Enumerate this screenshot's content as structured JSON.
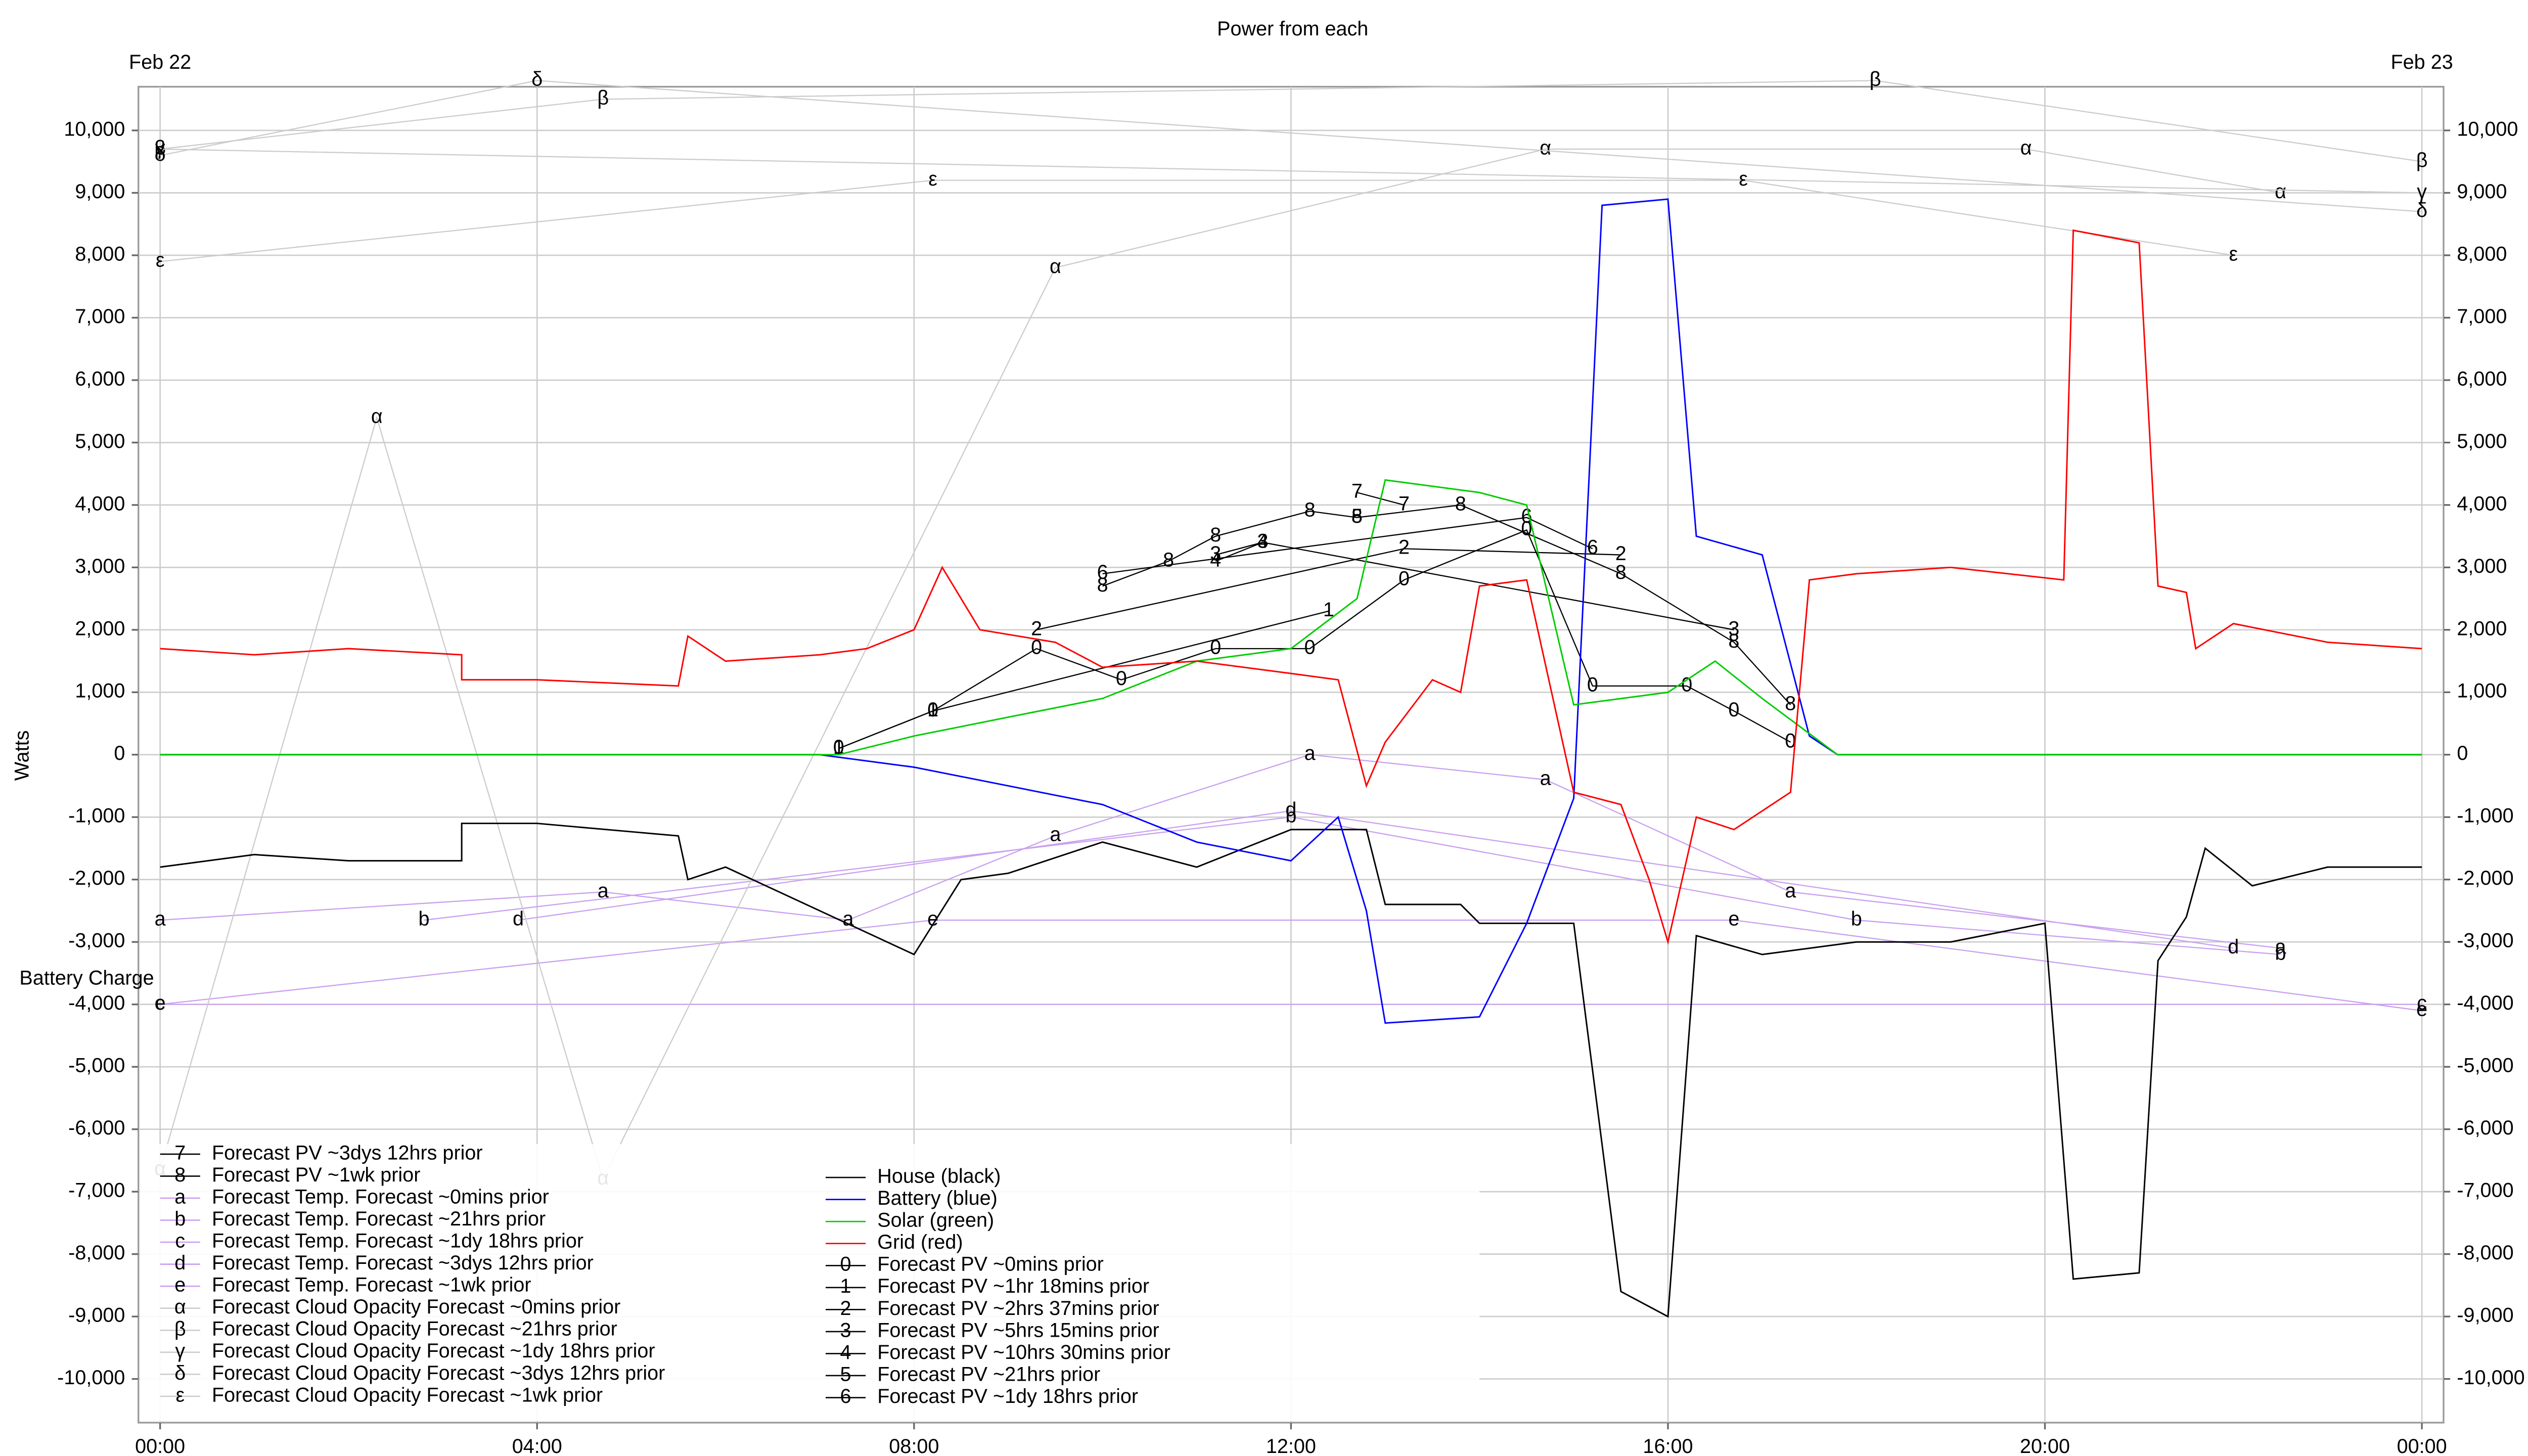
{
  "chart_data": {
    "type": "line",
    "title": "Power from each",
    "ylabel": "Watts",
    "annotations": [
      {
        "text": "Feb 22",
        "x": 0
      },
      {
        "text": "Feb 23",
        "x": 24
      },
      {
        "text": "Battery Charge",
        "y": -3600
      }
    ],
    "xlim": [
      -0.23,
      24.23
    ],
    "xticks": [
      {
        "value": 0,
        "label": "00:00"
      },
      {
        "value": 4,
        "label": "04:00"
      },
      {
        "value": 8,
        "label": "08:00"
      },
      {
        "value": 12,
        "label": "12:00"
      },
      {
        "value": 16,
        "label": "16:00"
      },
      {
        "value": 20,
        "label": "20:00"
      },
      {
        "value": 24,
        "label": "00:00"
      }
    ],
    "ylim": [
      -10700,
      10700
    ],
    "yticks": [
      {
        "value": -10000,
        "label": "-10,000"
      },
      {
        "value": -9000,
        "label": "-9,000"
      },
      {
        "value": -8000,
        "label": "-8,000"
      },
      {
        "value": -7000,
        "label": "-7,000"
      },
      {
        "value": -6000,
        "label": "-6,000"
      },
      {
        "value": -5000,
        "label": "-5,000"
      },
      {
        "value": -4000,
        "label": "-4,000"
      },
      {
        "value": -3000,
        "label": "-3,000"
      },
      {
        "value": -2000,
        "label": "-2,000"
      },
      {
        "value": -1000,
        "label": "-1,000"
      },
      0,
      {
        "value": 1000,
        "label": "1,000"
      },
      {
        "value": 2000,
        "label": "2,000"
      },
      {
        "value": 3000,
        "label": "3,000"
      },
      {
        "value": 4000,
        "label": "4,000"
      },
      {
        "value": 5000,
        "label": "5,000"
      },
      {
        "value": 6000,
        "label": "6,000"
      },
      {
        "value": 7000,
        "label": "7,000"
      },
      {
        "value": 8000,
        "label": "8,000"
      },
      {
        "value": 9000,
        "label": "9,000"
      },
      {
        "value": 10000,
        "label": "10,000"
      }
    ],
    "grid": true,
    "legend": "lower left",
    "series": [
      {
        "name": "House (black)",
        "color": "#000000",
        "x": [
          0,
          1,
          2,
          3.2,
          3.2,
          4,
          5.5,
          5.6,
          6,
          7,
          8,
          8.5,
          9,
          10,
          11,
          12,
          12.8,
          13,
          13.8,
          14,
          15,
          15.5,
          16,
          16.3,
          17,
          18,
          19,
          20,
          20.3,
          21,
          21.2,
          21.5,
          21.7,
          22.2,
          23,
          24
        ],
        "values": [
          -1800,
          -1600,
          -1700,
          -1700,
          -1100,
          -1100,
          -1300,
          -2000,
          -1800,
          -2500,
          -3200,
          -2000,
          -1900,
          -1400,
          -1800,
          -1200,
          -1200,
          -2400,
          -2400,
          -2700,
          -2700,
          -8600,
          -9000,
          -2900,
          -3200,
          -3000,
          -3000,
          -2700,
          -8400,
          -8300,
          -3300,
          -2600,
          -1500,
          -2100,
          -1800,
          -1800
        ]
      },
      {
        "name": "Battery (blue)",
        "color": "#0000ff",
        "x": [
          0,
          7,
          8,
          9,
          10,
          11,
          12,
          12.5,
          12.8,
          13,
          14,
          14.5,
          15,
          15.3,
          16,
          16.3,
          17,
          17.5,
          17.8,
          24
        ],
        "values": [
          0,
          0,
          -200,
          -500,
          -800,
          -1400,
          -1700,
          -1000,
          -2500,
          -4300,
          -4200,
          -2700,
          -700,
          8800,
          8900,
          3500,
          3200,
          300,
          0,
          0
        ]
      },
      {
        "name": "Solar (green)",
        "color": "#00cc00",
        "x": [
          0,
          7.2,
          8,
          9,
          10,
          11,
          12,
          12.7,
          13,
          14,
          14.5,
          15,
          16,
          16.5,
          17,
          17.8,
          24
        ],
        "values": [
          0,
          0,
          300,
          600,
          900,
          1500,
          1700,
          2500,
          4400,
          4200,
          4000,
          800,
          1000,
          1500,
          900,
          0,
          0
        ]
      },
      {
        "name": "Grid (red)",
        "color": "#ff0000",
        "x": [
          0,
          1,
          2,
          3.2,
          3.2,
          4,
          5.5,
          5.6,
          6,
          7,
          7.5,
          8,
          8.3,
          8.7,
          9.5,
          10,
          11,
          12,
          12.5,
          12.8,
          13,
          13.5,
          13.8,
          14,
          14.5,
          15,
          15.5,
          15.8,
          16,
          16.3,
          16.7,
          17.3,
          17.5,
          18,
          19,
          20.2,
          20.3,
          21,
          21.2,
          21.5,
          21.6,
          22,
          23,
          24
        ],
        "values": [
          1700,
          1600,
          1700,
          1600,
          1200,
          1200,
          1100,
          1900,
          1500,
          1600,
          1700,
          2000,
          3000,
          2000,
          1800,
          1400,
          1500,
          1300,
          1200,
          -500,
          200,
          1200,
          1000,
          2700,
          2800,
          -600,
          -800,
          -2000,
          -3000,
          -1000,
          -1200,
          -600,
          2800,
          2900,
          3000,
          2800,
          8400,
          8200,
          2700,
          2600,
          1700,
          2100,
          1800,
          1700
        ]
      },
      {
        "name": "Forecast PV ~0mins prior",
        "marker": "0",
        "color": "#000000",
        "x": [
          7.2,
          8.2,
          9.3,
          10.2,
          11.2,
          12.2,
          13.2,
          14.5,
          15.2,
          16.2,
          16.7,
          17.3
        ],
        "values": [
          100,
          700,
          1700,
          1200,
          1700,
          1700,
          2800,
          3600,
          1100,
          1100,
          700,
          200
        ]
      },
      {
        "name": "Forecast PV ~1hr 18mins prior",
        "marker": "1",
        "color": "#000000",
        "x": [
          7.2,
          8.2,
          12.4
        ],
        "values": [
          100,
          700,
          2300
        ]
      },
      {
        "name": "Forecast PV ~2hrs 37mins prior",
        "marker": "2",
        "color": "#000000",
        "x": [
          9.3,
          13.2,
          15.5
        ],
        "values": [
          2000,
          3300,
          3200
        ]
      },
      {
        "name": "Forecast PV ~5hrs 15mins prior",
        "marker": "3",
        "color": "#000000",
        "x": [
          11.2,
          11.7,
          16.7
        ],
        "values": [
          3200,
          3400,
          2000
        ]
      },
      {
        "name": "Forecast PV ~10hrs 30mins prior",
        "marker": "4",
        "color": "#000000",
        "x": [
          11.2,
          11.7
        ],
        "values": [
          3100,
          3400
        ]
      },
      {
        "name": "Forecast PV ~21hrs prior",
        "marker": "5",
        "color": "#000000",
        "x": [
          12.7
        ],
        "values": [
          3800
        ]
      },
      {
        "name": "Forecast PV ~1dy 18hrs prior",
        "marker": "6",
        "color": "#000000",
        "x": [
          10,
          14.5,
          15.2
        ],
        "values": [
          2900,
          3800,
          3300
        ]
      },
      {
        "name": "Forecast PV ~3dys 12hrs prior",
        "marker": "7",
        "color": "#000000",
        "x": [
          12.7,
          13.2
        ],
        "values": [
          4200,
          4000
        ]
      },
      {
        "name": "Forecast PV ~1wk prior",
        "marker": "8",
        "color": "#000000",
        "x": [
          10,
          10.7,
          11.2,
          12.2,
          12.7,
          13.8,
          15.5,
          16.7,
          17.3
        ],
        "values": [
          2700,
          3100,
          3500,
          3900,
          3800,
          4000,
          2900,
          1800,
          800
        ]
      },
      {
        "name": "Forecast Temp. Forecast ~0mins prior",
        "marker": "a",
        "color": "#c9a0f0",
        "x": [
          0,
          4.7,
          7.3,
          9.5,
          12.2,
          14.7,
          17.3,
          22.5
        ],
        "values": [
          -2650,
          -2200,
          -2650,
          -1300,
          0,
          -400,
          -2200,
          -3100
        ]
      },
      {
        "name": "Forecast Temp. Forecast ~21hrs prior",
        "marker": "b",
        "color": "#c9a0f0",
        "x": [
          2.8,
          12,
          18,
          22.5
        ],
        "values": [
          -2650,
          -1000,
          -2650,
          -3200
        ]
      },
      {
        "name": "Forecast Temp. Forecast ~1dy 18hrs prior",
        "marker": "c",
        "color": "#c9a0f0",
        "x": [
          0,
          24
        ],
        "values": [
          -4000,
          -4000
        ]
      },
      {
        "name": "Forecast Temp. Forecast ~3dys 12hrs prior",
        "marker": "d",
        "color": "#c9a0f0",
        "x": [
          3.8,
          12,
          22
        ],
        "values": [
          -2650,
          -900,
          -3100
        ]
      },
      {
        "name": "Forecast Temp. Forecast ~1wk prior",
        "marker": "e",
        "color": "#c9a0f0",
        "x": [
          0,
          8.2,
          16.7,
          24
        ],
        "values": [
          -4000,
          -2650,
          -2650,
          -4100
        ]
      },
      {
        "name": "Forecast Cloud Opacity Forecast ~0mins prior",
        "marker": "α",
        "color": "#cccccc",
        "x": [
          0,
          2.3,
          4.7,
          9.5,
          14.7,
          19.8,
          22.5
        ],
        "values": [
          -6650,
          5400,
          -6800,
          7800,
          9700,
          9700,
          9000
        ]
      },
      {
        "name": "Forecast Cloud Opacity Forecast ~21hrs prior",
        "marker": "β",
        "color": "#cccccc",
        "x": [
          0,
          4.7,
          18.2,
          24
        ],
        "values": [
          9700,
          10500,
          10800,
          9500
        ]
      },
      {
        "name": "Forecast Cloud Opacity Forecast ~1dy 18hrs prior",
        "marker": "γ",
        "color": "#cccccc",
        "x": [
          0,
          24
        ],
        "values": [
          9700,
          9000
        ]
      },
      {
        "name": "Forecast Cloud Opacity Forecast ~3dys 12hrs prior",
        "marker": "δ",
        "color": "#cccccc",
        "x": [
          0,
          4,
          24
        ],
        "values": [
          9600,
          10800,
          8700
        ]
      },
      {
        "name": "Forecast Cloud Opacity Forecast ~1wk prior",
        "marker": "ε",
        "color": "#cccccc",
        "x": [
          0,
          8.2,
          16.8,
          22
        ],
        "values": [
          7900,
          9200,
          9200,
          8000
        ]
      }
    ]
  }
}
